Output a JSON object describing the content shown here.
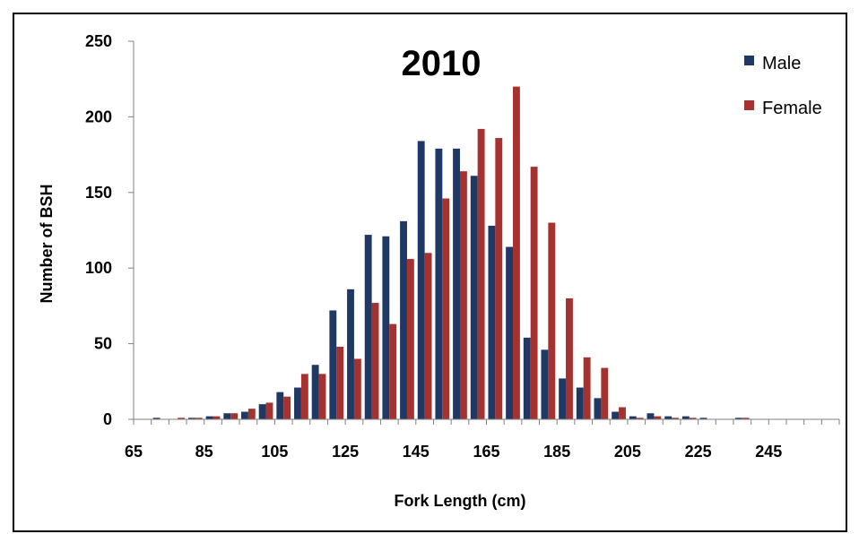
{
  "chart_data": {
    "type": "bar",
    "title": "2010",
    "xlabel": "Fork Length (cm)",
    "ylabel": "Number of BSH",
    "ylim": [
      0,
      250
    ],
    "yticks": [
      "0",
      "50",
      "100",
      "150",
      "200",
      "250"
    ],
    "xtick_labels": [
      "65",
      "85",
      "105",
      "125",
      "145",
      "165",
      "185",
      "205",
      "225",
      "245"
    ],
    "categories": [
      "65",
      "70",
      "75",
      "80",
      "85",
      "90",
      "95",
      "100",
      "105",
      "110",
      "115",
      "120",
      "125",
      "130",
      "135",
      "140",
      "145",
      "150",
      "155",
      "160",
      "165",
      "170",
      "175",
      "180",
      "185",
      "190",
      "195",
      "200",
      "205",
      "210",
      "215",
      "220",
      "225",
      "230",
      "235",
      "240",
      "245",
      "250",
      "255",
      "260"
    ],
    "series": [
      {
        "name": "Male",
        "color": "#1f3864",
        "values": [
          0,
          1,
          0,
          1,
          2,
          4,
          5,
          10,
          18,
          21,
          36,
          72,
          86,
          122,
          121,
          131,
          184,
          179,
          179,
          161,
          128,
          114,
          54,
          46,
          27,
          21,
          14,
          5,
          2,
          4,
          2,
          2,
          1,
          0,
          1,
          0,
          0,
          0,
          0,
          0
        ]
      },
      {
        "name": "Female",
        "color": "#a5322e",
        "values": [
          0,
          0,
          1,
          1,
          2,
          4,
          7,
          11,
          15,
          30,
          30,
          48,
          40,
          77,
          63,
          106,
          110,
          146,
          164,
          192,
          186,
          220,
          167,
          130,
          80,
          41,
          34,
          8,
          1,
          2,
          1,
          1,
          0,
          0,
          1,
          0,
          0,
          0,
          0,
          0
        ]
      }
    ],
    "legend": "top-right",
    "grid": false
  }
}
